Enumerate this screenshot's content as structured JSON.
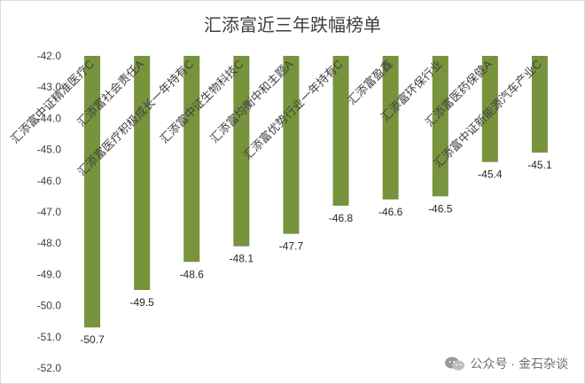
{
  "chart_data": {
    "type": "bar",
    "title": "汇添富近三年跌幅榜单",
    "categories": [
      "汇添富中证精准医疗C",
      "汇添富社会责任A",
      "汇添富医疗积极成长一年持有C",
      "汇添富中证生物科技C",
      "汇添富均衡中和主题A",
      "汇添富优势行业一年持有C",
      "汇添富盈鑫",
      "汇添富环保行业",
      "汇添富医药保健A",
      "汇添富中证新能源汽车产业C"
    ],
    "values": [
      -50.7,
      -49.5,
      -48.6,
      -48.1,
      -47.7,
      -46.8,
      -46.6,
      -46.5,
      -45.4,
      -45.1
    ],
    "value_labels": [
      "-50.7",
      "-49.5",
      "-48.6",
      "-48.1",
      "-47.7",
      "-46.8",
      "-46.6",
      "-46.5",
      "-45.4",
      "-45.1"
    ],
    "y_ticks": [
      "-42.0",
      "-43.0",
      "-44.0",
      "-45.0",
      "-46.0",
      "-47.0",
      "-48.0",
      "-49.0",
      "-50.0",
      "-51.0",
      "-52.0"
    ],
    "ylim": [
      -52,
      -42
    ],
    "y_inverted_origin": "top",
    "grid": false,
    "bar_color": "#77933c"
  },
  "watermark": {
    "text": "公众号 · 金石杂谈",
    "icon": "wechat-icon"
  }
}
